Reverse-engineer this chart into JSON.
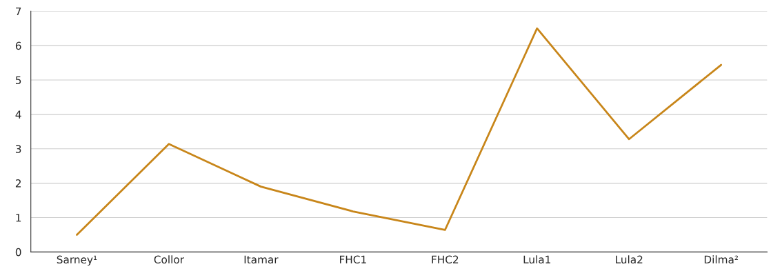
{
  "chart_data": {
    "type": "line",
    "categories": [
      "Sarney¹",
      "Collor",
      "Itamar",
      "FHC1",
      "FHC2",
      "Lula1",
      "Lula2",
      "Dilma²"
    ],
    "series": [
      {
        "color": "#c8861a",
        "values": [
          0.5,
          3.14,
          1.9,
          1.18,
          0.64,
          6.5,
          3.28,
          5.44
        ]
      }
    ],
    "ylim": [
      0,
      7
    ],
    "yticks": [
      0,
      1,
      2,
      3,
      4,
      5,
      6,
      7
    ],
    "grid": "y",
    "legend": false,
    "marker": "none",
    "line_style": "solid"
  }
}
